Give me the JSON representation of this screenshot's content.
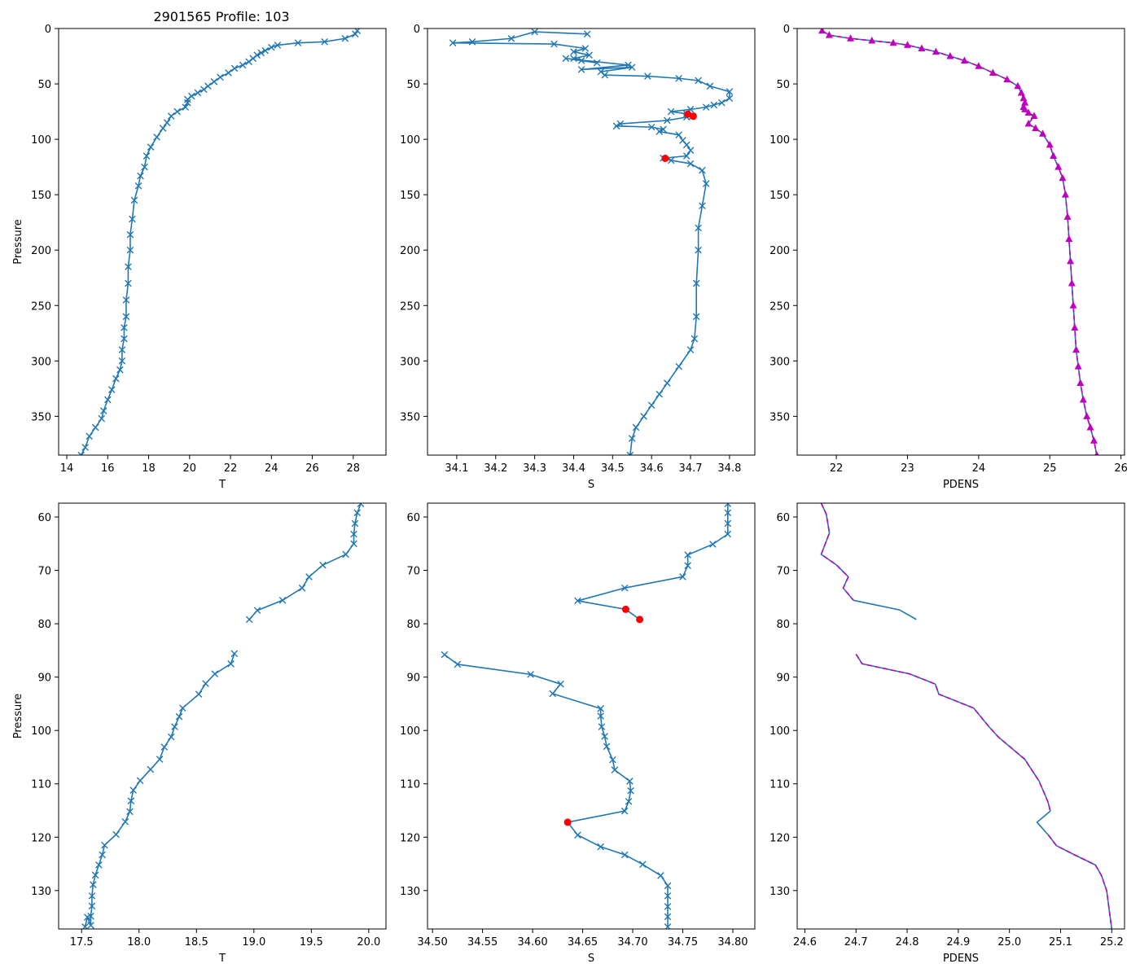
{
  "figure_title": "2901565 Profile: 103",
  "colors": {
    "line": "#1f77b4",
    "flag": "#ff0000",
    "density": "#bf00bf",
    "axis": "#000000"
  },
  "chart_data": [
    {
      "type": "line",
      "panel": "top-left",
      "title": "2901565 Profile: 103",
      "xlabel": "T",
      "ylabel": "Pressure",
      "marker": "x",
      "xlim": [
        13.6,
        29.6
      ],
      "ylim": [
        385,
        0
      ],
      "xticks": [
        14,
        16,
        18,
        20,
        22,
        24,
        26,
        28
      ],
      "yticks": [
        0,
        50,
        100,
        150,
        200,
        250,
        300,
        350
      ],
      "series": [
        {
          "name": "T",
          "style": "line-x",
          "x": [
            28.2,
            28.1,
            27.6,
            26.6,
            25.3,
            24.3,
            24.0,
            23.7,
            23.5,
            23.3,
            23.1,
            22.9,
            22.6,
            22.2,
            21.9,
            21.5,
            21.2,
            20.9,
            20.7,
            20.4,
            20.1,
            19.9,
            19.9,
            19.8,
            19.4,
            19.1,
            18.9,
            18.7,
            18.4,
            18.1,
            17.9,
            17.8,
            17.6,
            17.5,
            17.3,
            17.2,
            17.1,
            17.1,
            17.0,
            17.0,
            16.9,
            16.9,
            16.8,
            16.8,
            16.7,
            16.7,
            16.6,
            16.4,
            16.2,
            16.0,
            15.8,
            15.7,
            15.4,
            15.1,
            14.9,
            14.7
          ],
          "y": [
            2,
            5,
            9,
            12,
            13,
            15,
            17,
            20,
            22,
            24,
            27,
            30,
            33,
            36,
            40,
            44,
            48,
            52,
            55,
            58,
            61,
            64,
            67,
            71,
            75,
            79,
            85,
            90,
            98,
            107,
            115,
            125,
            133,
            142,
            155,
            172,
            186,
            200,
            215,
            230,
            245,
            260,
            270,
            280,
            290,
            300,
            308,
            316,
            326,
            335,
            345,
            352,
            360,
            368,
            378,
            385
          ]
        }
      ]
    },
    {
      "type": "line",
      "panel": "top-middle",
      "title": "",
      "xlabel": "S",
      "ylabel": "",
      "marker": "x",
      "xlim": [
        34.025,
        34.865
      ],
      "ylim": [
        385,
        0
      ],
      "xticks": [
        34.1,
        34.2,
        34.3,
        34.4,
        34.5,
        34.6,
        34.7,
        34.8
      ],
      "yticks": [
        0,
        50,
        100,
        150,
        200,
        250,
        300,
        350
      ],
      "series": [
        {
          "name": "S",
          "style": "line-x",
          "x": [
            34.435,
            34.3,
            34.24,
            34.14,
            34.09,
            34.35,
            34.43,
            34.4,
            34.44,
            34.4,
            34.46,
            34.42,
            34.38,
            34.54,
            34.42,
            34.55,
            34.47,
            34.48,
            34.59,
            34.67,
            34.72,
            34.75,
            34.8,
            34.8,
            34.78,
            34.76,
            34.74,
            34.7,
            34.65,
            34.69,
            34.705,
            34.69,
            34.64,
            34.52,
            34.51,
            34.6,
            34.63,
            34.62,
            34.67,
            34.68,
            34.69,
            34.7,
            34.69,
            34.63,
            34.65,
            34.7,
            34.73,
            34.74,
            34.73,
            34.72,
            34.72,
            34.715,
            34.715,
            34.71,
            34.7,
            34.67,
            34.64,
            34.62,
            34.6,
            34.58,
            34.56,
            34.55,
            34.545
          ],
          "y": [
            5,
            3,
            9,
            12,
            13,
            14,
            18,
            21,
            24,
            27,
            31,
            29,
            27,
            33,
            37,
            35,
            39,
            42,
            43,
            45,
            47,
            52,
            57,
            63,
            67,
            69,
            71,
            73,
            75,
            77,
            79,
            80,
            83,
            86,
            88,
            89,
            91,
            93,
            96,
            101,
            105,
            110,
            115,
            117,
            119,
            122,
            128,
            140,
            160,
            180,
            200,
            230,
            260,
            280,
            290,
            305,
            320,
            330,
            340,
            350,
            360,
            370,
            385
          ]
        },
        {
          "name": "flagged",
          "style": "markers",
          "x": [
            34.693,
            34.707,
            34.635
          ],
          "y": [
            77.3,
            79.2,
            117.2
          ]
        }
      ]
    },
    {
      "type": "line",
      "panel": "top-right",
      "title": "",
      "xlabel": "PDENS",
      "ylabel": "",
      "marker": "^",
      "xlim": [
        21.45,
        26.05
      ],
      "ylim": [
        385,
        0
      ],
      "xticks": [
        22,
        23,
        24,
        25,
        26
      ],
      "yticks": [
        0,
        50,
        100,
        150,
        200,
        250,
        300,
        350
      ],
      "series": [
        {
          "name": "PDENS",
          "style": "line-triangle",
          "x": [
            21.8,
            21.9,
            22.2,
            22.5,
            22.8,
            23.0,
            23.2,
            23.4,
            23.6,
            23.8,
            24.0,
            24.2,
            24.4,
            24.55,
            24.6,
            24.63,
            24.65,
            24.63,
            24.65,
            24.7,
            24.78,
            24.7,
            24.8,
            24.9,
            25.0,
            25.05,
            25.12,
            25.18,
            25.22,
            25.25,
            25.27,
            25.29,
            25.31,
            25.33,
            25.35,
            25.37,
            25.4,
            25.43,
            25.47,
            25.52,
            25.57,
            25.62,
            25.66
          ],
          "y": [
            2,
            6,
            9,
            11,
            13,
            15,
            18,
            21,
            25,
            29,
            34,
            40,
            46,
            52,
            58,
            63,
            67,
            71,
            73,
            76,
            79,
            86,
            90,
            95,
            105,
            115,
            125,
            135,
            150,
            170,
            190,
            210,
            230,
            250,
            270,
            290,
            305,
            320,
            335,
            350,
            360,
            372,
            385
          ]
        }
      ]
    },
    {
      "type": "line",
      "panel": "bottom-left",
      "title": "",
      "xlabel": "T",
      "ylabel": "Pressure",
      "marker": "x",
      "xlim": [
        17.3,
        20.15
      ],
      "ylim": [
        137.2,
        57.4
      ],
      "xticks": [
        17.5,
        18.0,
        18.5,
        19.0,
        19.5,
        20.0
      ],
      "yticks": [
        60,
        70,
        80,
        90,
        100,
        110,
        120,
        130
      ],
      "series": [
        {
          "name": "T segment 1",
          "style": "line-x",
          "x": [
            19.93,
            19.9,
            19.88,
            19.87,
            19.87,
            19.8,
            19.6,
            19.48,
            19.42,
            19.25,
            19.03,
            18.96
          ],
          "y": [
            57.5,
            59.2,
            61.2,
            63.2,
            65.0,
            67.0,
            69.0,
            71.2,
            73.3,
            75.6,
            77.5,
            79.2
          ]
        },
        {
          "name": "T segment 2",
          "style": "line-x",
          "x": [
            18.83,
            18.8,
            18.66,
            18.58,
            18.52,
            18.38,
            18.35,
            18.31,
            18.28,
            18.22,
            18.18,
            18.1,
            18.01,
            17.95,
            17.93,
            17.92,
            17.88,
            17.8,
            17.7,
            17.68,
            17.65,
            17.62,
            17.6,
            17.59,
            17.59,
            17.58,
            17.58,
            17.55,
            17.53
          ],
          "y": [
            85.6,
            87.5,
            89.4,
            91.2,
            93.2,
            95.8,
            97.4,
            99.3,
            101.2,
            103.1,
            105.4,
            107.3,
            109.4,
            111.2,
            113.2,
            115.2,
            117.1,
            119.5,
            121.5,
            123.3,
            125.2,
            127.1,
            128.9,
            131.0,
            132.9,
            134.8,
            136.5,
            135.0,
            136.8
          ]
        }
      ]
    },
    {
      "type": "line",
      "panel": "bottom-middle",
      "title": "",
      "xlabel": "S",
      "ylabel": "",
      "marker": "x",
      "xlim": [
        34.495,
        34.822
      ],
      "ylim": [
        137.2,
        57.4
      ],
      "xticks": [
        34.5,
        34.55,
        34.6,
        34.65,
        34.7,
        34.75,
        34.8
      ],
      "yticks": [
        60,
        70,
        80,
        90,
        100,
        110,
        120,
        130
      ],
      "series": [
        {
          "name": "S segment 1",
          "style": "line-x",
          "x": [
            34.795,
            34.795,
            34.795,
            34.795,
            34.78,
            34.755,
            34.755,
            34.75,
            34.692,
            34.645
          ],
          "y": [
            57.5,
            59.2,
            61.2,
            63.2,
            65.1,
            67.1,
            69.1,
            71.2,
            73.3,
            75.7
          ]
        },
        {
          "name": "S segment 2",
          "style": "line",
          "x": [
            34.645,
            34.693,
            34.707
          ],
          "y": [
            75.7,
            77.3,
            79.2
          ]
        },
        {
          "name": "S segment 3",
          "style": "line-x",
          "x": [
            34.512,
            34.525,
            34.598,
            34.628,
            34.62,
            34.668,
            34.668,
            34.669,
            34.672,
            34.674,
            34.68,
            34.682,
            34.697,
            34.698,
            34.696,
            34.692
          ],
          "y": [
            85.8,
            87.6,
            89.5,
            91.3,
            93.1,
            95.9,
            97.3,
            99.3,
            101.1,
            103.0,
            105.5,
            107.4,
            109.5,
            111.3,
            113.3,
            115.1
          ]
        },
        {
          "name": "S segment 4",
          "style": "line",
          "x": [
            34.692,
            34.635,
            34.645
          ],
          "y": [
            115.1,
            117.2,
            119.6
          ]
        },
        {
          "name": "S segment 5",
          "style": "line-x",
          "x": [
            34.645,
            34.668,
            34.692,
            34.71,
            34.728,
            34.735,
            34.735,
            34.735,
            34.735,
            34.735
          ],
          "y": [
            119.6,
            121.8,
            123.3,
            125.1,
            127.2,
            129.1,
            131.0,
            133.0,
            134.9,
            136.8
          ]
        },
        {
          "name": "flagged",
          "style": "markers",
          "x": [
            34.693,
            34.707,
            34.635
          ],
          "y": [
            77.3,
            79.2,
            117.2
          ]
        }
      ]
    },
    {
      "type": "line",
      "panel": "bottom-right",
      "title": "",
      "xlabel": "PDENS",
      "ylabel": "",
      "marker": "none",
      "xlim": [
        24.585,
        25.225
      ],
      "ylim": [
        137.2,
        57.4
      ],
      "xticks": [
        24.6,
        24.7,
        24.8,
        24.9,
        25.0,
        25.1,
        25.2
      ],
      "yticks": [
        60,
        70,
        80,
        90,
        100,
        110,
        120,
        130
      ],
      "series": [
        {
          "name": "PDENS segment 1",
          "style": "dashed-over-solid",
          "x": [
            24.632,
            24.642,
            24.648,
            24.64,
            24.632,
            24.662,
            24.685,
            24.675,
            24.695
          ],
          "y": [
            57.4,
            59.5,
            63.0,
            65.0,
            67.0,
            69.0,
            71.2,
            73.3,
            75.6
          ]
        },
        {
          "name": "PDENS segment 2",
          "style": "line",
          "x": [
            24.695,
            24.785,
            24.818
          ],
          "y": [
            75.6,
            77.4,
            79.2
          ]
        },
        {
          "name": "PDENS segment 3",
          "style": "dashed-over-solid",
          "x": [
            24.7,
            24.712,
            24.805,
            24.855,
            24.862,
            24.93,
            24.96,
            24.978,
            25.03,
            25.058,
            25.075,
            25.08
          ],
          "y": [
            85.7,
            87.5,
            89.4,
            91.3,
            93.2,
            95.8,
            99.3,
            101.2,
            105.4,
            109.5,
            113.3,
            115.1
          ]
        },
        {
          "name": "PDENS segment 4",
          "style": "line",
          "x": [
            25.08,
            25.054,
            25.076
          ],
          "y": [
            115.1,
            117.2,
            119.6
          ]
        },
        {
          "name": "PDENS segment 5",
          "style": "dashed-over-solid",
          "x": [
            25.076,
            25.092,
            25.127,
            25.168,
            25.18,
            25.19,
            25.2
          ],
          "y": [
            119.6,
            121.6,
            123.3,
            125.2,
            127.2,
            130.0,
            137.2
          ]
        }
      ]
    }
  ]
}
